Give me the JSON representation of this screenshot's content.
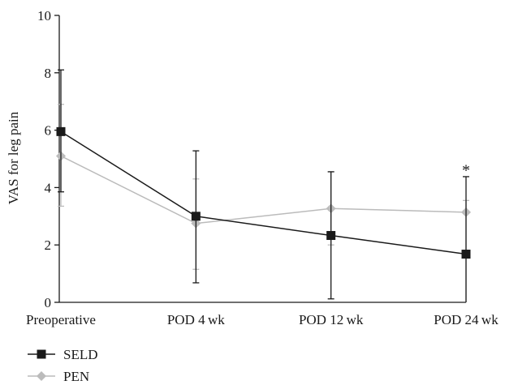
{
  "chart_data": {
    "type": "line",
    "title": "",
    "xlabel": "",
    "ylabel": "VAS for leg pain",
    "categories": [
      "Preoperative",
      "POD 4 wk",
      "POD 12 wk",
      "POD 24 wk"
    ],
    "ylim": [
      0,
      10
    ],
    "yticks": [
      0,
      2,
      4,
      6,
      8,
      10
    ],
    "grid": false,
    "legend_position": "bottom-left",
    "series": [
      {
        "name": "SELD",
        "color": "#1a1a1a",
        "marker": "square",
        "values": [
          5.95,
          3.0,
          2.33,
          1.68
        ],
        "error_upper": [
          8.1,
          5.28,
          4.55,
          4.38
        ],
        "error_lower": [
          3.85,
          0.68,
          0.12,
          0.0
        ]
      },
      {
        "name": "PEN",
        "color": "#bbbbbb",
        "marker": "diamond",
        "values": [
          5.1,
          2.75,
          3.27,
          3.14
        ],
        "error_upper": [
          6.9,
          4.3,
          4.55,
          3.55
        ],
        "error_lower": [
          3.35,
          1.15,
          2.0,
          0.0
        ]
      }
    ],
    "annotations": [
      {
        "text": "*",
        "category_index": 3,
        "y": 4.7
      }
    ]
  }
}
